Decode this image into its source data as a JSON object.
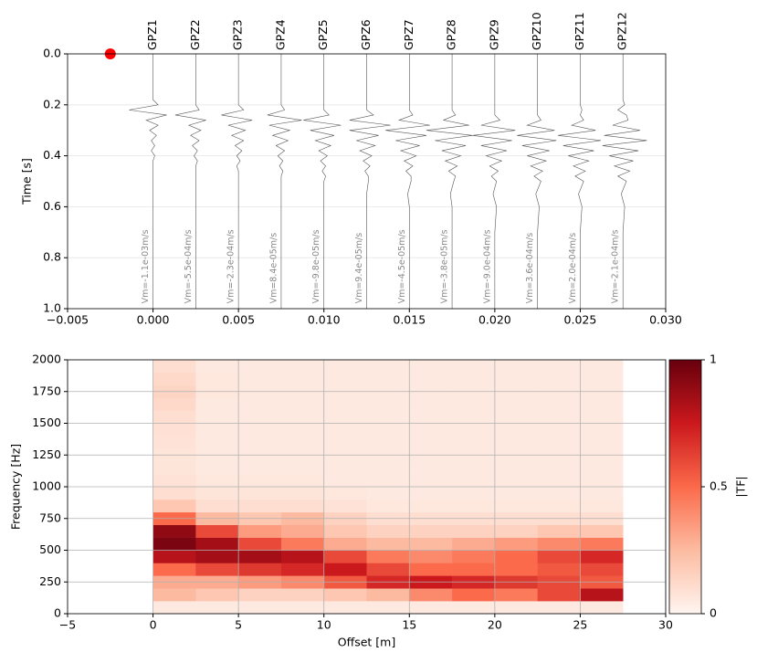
{
  "chart_data": [
    {
      "type": "wiggle",
      "ylabel": "Time [s]",
      "xlim": [
        -0.005,
        0.03
      ],
      "xticks": [
        {
          "value": -0.005,
          "label": "−0.005"
        },
        {
          "value": 0,
          "label": "0.000"
        },
        0.005,
        {
          "value": 0.01,
          "label": "0.010"
        },
        0.015,
        {
          "value": 0.02,
          "label": "0.020"
        },
        0.025,
        {
          "value": 0.03,
          "label": "0.030"
        }
      ],
      "ylim": [
        1,
        0
      ],
      "yticks": [
        {
          "value": 0,
          "label": "0.0"
        },
        0.2,
        0.4,
        0.6,
        0.8,
        {
          "value": 1,
          "label": "1.0"
        }
      ],
      "grid": true,
      "color": "#555555",
      "source": {
        "x": -0.0025,
        "y": 0,
        "color": "#ff0000"
      },
      "time": [
        0,
        0.18,
        0.2,
        0.22,
        0.24,
        0.26,
        0.28,
        0.3,
        0.32,
        0.34,
        0.36,
        0.38,
        0.4,
        0.42,
        0.44,
        0.46,
        0.48,
        0.5,
        0.55,
        0.6,
        0.7,
        1.0
      ],
      "series": [
        {
          "name": "GPZ1",
          "offset": 0,
          "label": "Vm=-1.1e-03m/s",
          "values": [
            0,
            0,
            0.0003,
            -0.0014,
            0.0008,
            -0.0004,
            0.0003,
            -0.0002,
            0.0002,
            -0.0001,
            0.0001,
            -0.0001,
            0.0001,
            0,
            0,
            0,
            0,
            0,
            0,
            0,
            0,
            0
          ]
        },
        {
          "name": "GPZ2",
          "offset": 0.0025,
          "label": "Vm=-5.5e-04m/s",
          "values": [
            0,
            0,
            0,
            0.0002,
            -0.0012,
            0.0006,
            -0.0004,
            0.0003,
            -0.0003,
            0.0002,
            -0.0002,
            0.0001,
            -0.0001,
            0.0001,
            0,
            0,
            0,
            0,
            0,
            0,
            0,
            0
          ]
        },
        {
          "name": "GPZ3",
          "offset": 0.005,
          "label": "Vm=-2.3e-04m/s",
          "values": [
            0,
            0,
            0,
            0.0003,
            -0.001,
            0.0008,
            -0.0006,
            0.0004,
            -0.0004,
            0.0003,
            -0.0002,
            0.0002,
            -0.0001,
            0.0001,
            -0.0001,
            0,
            0,
            0,
            0,
            0,
            0,
            0
          ]
        },
        {
          "name": "GPZ4",
          "offset": 0.0075,
          "label": "Vm=8.4e-05m/s",
          "values": [
            0,
            0,
            0,
            0.0002,
            -0.0008,
            0.0012,
            -0.0007,
            0.0005,
            -0.0005,
            0.0004,
            -0.0003,
            0.0002,
            -0.0002,
            0.0001,
            -0.0001,
            0.0001,
            0,
            0,
            0,
            0,
            0,
            0
          ]
        },
        {
          "name": "GPZ5",
          "offset": 0.01,
          "label": "Vm=-9.8e-05m/s",
          "values": [
            0,
            0,
            0,
            0,
            0.0003,
            -0.0012,
            0.001,
            -0.0008,
            0.0006,
            -0.0005,
            0.0004,
            -0.0003,
            0.0002,
            -0.0002,
            0.0001,
            -0.0001,
            0.0001,
            0,
            0,
            0,
            0,
            0
          ]
        },
        {
          "name": "GPZ6",
          "offset": 0.0125,
          "label": "Vm=9.4e-05m/s",
          "values": [
            0,
            0,
            0,
            0,
            0.0004,
            -0.001,
            0.0014,
            -0.001,
            0.0007,
            -0.0006,
            0.0005,
            -0.0004,
            0.0003,
            -0.0002,
            0.0002,
            -0.0001,
            0.0001,
            0.0001,
            0,
            0,
            0,
            0
          ]
        },
        {
          "name": "GPZ7",
          "offset": 0.015,
          "label": "Vm=-4.5e-05m/s",
          "values": [
            0,
            0,
            0,
            0,
            0.0002,
            -0.0006,
            0.0012,
            -0.0014,
            0.001,
            -0.0008,
            0.0006,
            -0.0005,
            0.0004,
            -0.0003,
            0.0002,
            -0.0002,
            0.0001,
            0.0001,
            -0.0001,
            0,
            0,
            0
          ]
        },
        {
          "name": "GPZ8",
          "offset": 0.0175,
          "label": "Vm=-3.8e-05m/s",
          "values": [
            0,
            0,
            0,
            0,
            0.0002,
            -0.0005,
            0.001,
            -0.0015,
            0.0012,
            -0.001,
            0.0008,
            -0.0006,
            0.0005,
            -0.0004,
            0.0003,
            -0.0002,
            0.0002,
            0.0001,
            -0.0001,
            0,
            0,
            0
          ]
        },
        {
          "name": "GPZ9",
          "offset": 0.02,
          "label": "Vm=-9.0e-04m/s",
          "values": [
            0,
            0,
            0,
            0,
            0,
            0.0003,
            -0.0008,
            0.0012,
            -0.0013,
            0.001,
            -0.0008,
            0.0007,
            -0.0005,
            0.0004,
            -0.0003,
            0.0002,
            -0.0002,
            0.0001,
            -0.0001,
            0.0001,
            0,
            0
          ]
        },
        {
          "name": "GPZ10",
          "offset": 0.0225,
          "label": "Vm=3.6e-04m/s",
          "values": [
            0,
            0,
            0,
            0,
            0,
            0.0002,
            -0.0006,
            0.001,
            -0.0012,
            0.0011,
            -0.0009,
            0.0007,
            -0.0006,
            0.0005,
            -0.0004,
            0.0003,
            -0.0002,
            0.0002,
            -0.0001,
            0.0001,
            0,
            0
          ]
        },
        {
          "name": "GPZ11",
          "offset": 0.025,
          "label": "Vm=2.0e-04m/s",
          "values": [
            0,
            0,
            0,
            0.0001,
            0,
            0.0002,
            -0.0005,
            0.0009,
            -0.0013,
            0.0012,
            -0.001,
            0.0008,
            -0.0007,
            0.0005,
            -0.0004,
            0.0003,
            -0.0003,
            0.0002,
            -0.0001,
            0.0001,
            0,
            0
          ]
        },
        {
          "name": "GPZ12",
          "offset": 0.0275,
          "label": "Vm=-2.1e-04m/s",
          "values": [
            0,
            0,
            0.0001,
            -0.0003,
            0.0002,
            0.0003,
            -0.0006,
            0.001,
            -0.0011,
            0.0014,
            -0.0012,
            0.0009,
            -0.0008,
            0.0006,
            -0.0005,
            0.0004,
            -0.0003,
            0.0002,
            -0.0001,
            0.0001,
            0,
            0
          ]
        }
      ]
    },
    {
      "type": "heatmap",
      "xlabel": "Offset [m]",
      "ylabel": "Frequency [Hz]",
      "xlim": [
        -5,
        30
      ],
      "xticks": [
        {
          "value": -5,
          "label": "−5"
        },
        0,
        5,
        10,
        15,
        20,
        25,
        30
      ],
      "ylim": [
        0,
        2000
      ],
      "yticks": [
        0,
        250,
        500,
        750,
        1000,
        1250,
        1500,
        1750,
        2000
      ],
      "grid": true,
      "colormap": "Reds",
      "colorbar": {
        "label": "|TF|",
        "lim": [
          0,
          1
        ],
        "ticks": [
          0,
          0.5,
          1
        ]
      },
      "x_edges": [
        0,
        2.5,
        5,
        7.5,
        10,
        12.5,
        15,
        17.5,
        20,
        22.5,
        25,
        27.5
      ],
      "y_edges": [
        0,
        100,
        200,
        300,
        400,
        500,
        600,
        700,
        800,
        900,
        1000,
        1100,
        1200,
        1300,
        1400,
        1500,
        1600,
        1700,
        1800,
        1900,
        2000
      ],
      "z": [
        [
          0.05,
          0.05,
          0.05,
          0.05,
          0.05,
          0.05,
          0.05,
          0.05,
          0.05,
          0.05,
          0.05
        ],
        [
          0.25,
          0.2,
          0.15,
          0.15,
          0.2,
          0.25,
          0.4,
          0.5,
          0.45,
          0.6,
          0.8
        ],
        [
          0.3,
          0.3,
          0.35,
          0.4,
          0.55,
          0.7,
          0.75,
          0.7,
          0.65,
          0.6,
          0.55
        ],
        [
          0.5,
          0.6,
          0.65,
          0.7,
          0.75,
          0.6,
          0.5,
          0.5,
          0.5,
          0.55,
          0.6
        ],
        [
          0.8,
          0.85,
          0.85,
          0.8,
          0.6,
          0.45,
          0.4,
          0.45,
          0.5,
          0.6,
          0.7
        ],
        [
          0.95,
          0.85,
          0.6,
          0.45,
          0.3,
          0.25,
          0.25,
          0.3,
          0.35,
          0.4,
          0.45
        ],
        [
          0.9,
          0.6,
          0.35,
          0.3,
          0.2,
          0.15,
          0.15,
          0.15,
          0.15,
          0.2,
          0.2
        ],
        [
          0.5,
          0.25,
          0.2,
          0.25,
          0.15,
          0.1,
          0.1,
          0.1,
          0.1,
          0.1,
          0.1
        ],
        [
          0.2,
          0.1,
          0.1,
          0.1,
          0.08,
          0.06,
          0.06,
          0.06,
          0.06,
          0.06,
          0.06
        ],
        [
          0.1,
          0.07,
          0.07,
          0.07,
          0.06,
          0.05,
          0.05,
          0.05,
          0.05,
          0.05,
          0.05
        ],
        [
          0.08,
          0.06,
          0.06,
          0.06,
          0.05,
          0.05,
          0.05,
          0.05,
          0.05,
          0.05,
          0.05
        ],
        [
          0.07,
          0.05,
          0.05,
          0.05,
          0.05,
          0.05,
          0.05,
          0.05,
          0.05,
          0.05,
          0.05
        ],
        [
          0.07,
          0.05,
          0.05,
          0.05,
          0.05,
          0.05,
          0.05,
          0.05,
          0.05,
          0.05,
          0.05
        ],
        [
          0.08,
          0.05,
          0.05,
          0.05,
          0.05,
          0.05,
          0.05,
          0.05,
          0.05,
          0.05,
          0.05
        ],
        [
          0.09,
          0.05,
          0.05,
          0.05,
          0.05,
          0.05,
          0.05,
          0.05,
          0.05,
          0.05,
          0.05
        ],
        [
          0.1,
          0.05,
          0.05,
          0.05,
          0.05,
          0.05,
          0.05,
          0.05,
          0.05,
          0.05,
          0.05
        ],
        [
          0.12,
          0.05,
          0.05,
          0.05,
          0.05,
          0.05,
          0.05,
          0.05,
          0.05,
          0.05,
          0.05
        ],
        [
          0.14,
          0.06,
          0.05,
          0.05,
          0.05,
          0.05,
          0.05,
          0.05,
          0.05,
          0.05,
          0.05
        ],
        [
          0.12,
          0.06,
          0.05,
          0.05,
          0.05,
          0.05,
          0.05,
          0.05,
          0.05,
          0.05,
          0.05
        ],
        [
          0.1,
          0.05,
          0.05,
          0.05,
          0.05,
          0.05,
          0.05,
          0.05,
          0.05,
          0.05,
          0.05
        ]
      ]
    }
  ]
}
